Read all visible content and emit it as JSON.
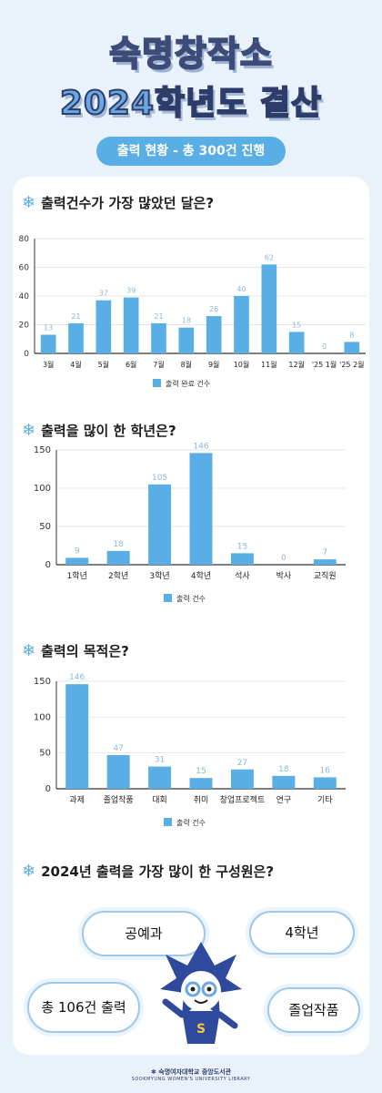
{
  "header": {
    "title_line1": "숙명창작소",
    "title_line2": "2024학년도 결산",
    "subtitle": "출력 현황 - 총 300건 진행"
  },
  "sections": {
    "monthly": {
      "question": "출력건수가 가장 많았던 달은?"
    },
    "grade": {
      "question": "출력을 많이 한 학년은?"
    },
    "purpose": {
      "question": "출력의 목적은?"
    },
    "member": {
      "question": "2024년 출력을 가장 많이 한 구성원은?"
    }
  },
  "colors": {
    "bar": "#5aaee6",
    "label": "#8ab8dc",
    "axis": "#333333",
    "grid": "#dddddd"
  },
  "chart_data": [
    {
      "type": "bar",
      "categories": [
        "3월",
        "4월",
        "5월",
        "6월",
        "7월",
        "8월",
        "9월",
        "10월",
        "11월",
        "12월",
        "'25 1월",
        "'25 2월"
      ],
      "series": [
        {
          "name": "출력 완료 건수",
          "values": [
            13,
            21,
            37,
            39,
            21,
            18,
            26,
            40,
            62,
            15,
            0,
            8
          ]
        }
      ],
      "ylim": [
        0,
        80
      ],
      "yticks": [
        0,
        20,
        40,
        60,
        80
      ],
      "grid": true,
      "legend": "bottom"
    },
    {
      "type": "bar",
      "categories": [
        "1학년",
        "2학년",
        "3학년",
        "4학년",
        "석사",
        "박사",
        "교직원"
      ],
      "series": [
        {
          "name": "출력 건수",
          "values": [
            9,
            18,
            105,
            146,
            15,
            0,
            7
          ]
        }
      ],
      "ylim": [
        0,
        150
      ],
      "yticks": [
        0,
        50,
        100,
        150
      ],
      "grid": true,
      "legend": "bottom"
    },
    {
      "type": "bar",
      "categories": [
        "과제",
        "졸업작품",
        "대회",
        "취미",
        "창업프로젝트",
        "연구",
        "기타"
      ],
      "series": [
        {
          "name": "출력 건수",
          "values": [
            146,
            47,
            31,
            15,
            27,
            18,
            16
          ]
        }
      ],
      "ylim": [
        0,
        150
      ],
      "yticks": [
        0,
        50,
        100,
        150
      ],
      "grid": true,
      "legend": "bottom"
    }
  ],
  "member_bubbles": {
    "department": "공예과",
    "grade": "4학년",
    "total": "총 106건 출력",
    "purpose": "졸업작품"
  },
  "footer": {
    "name": "숙명여자대학교 중앙도서관",
    "name_en": "SOOKMYUNG WOMEN'S UNIVERSITY LIBRARY"
  }
}
